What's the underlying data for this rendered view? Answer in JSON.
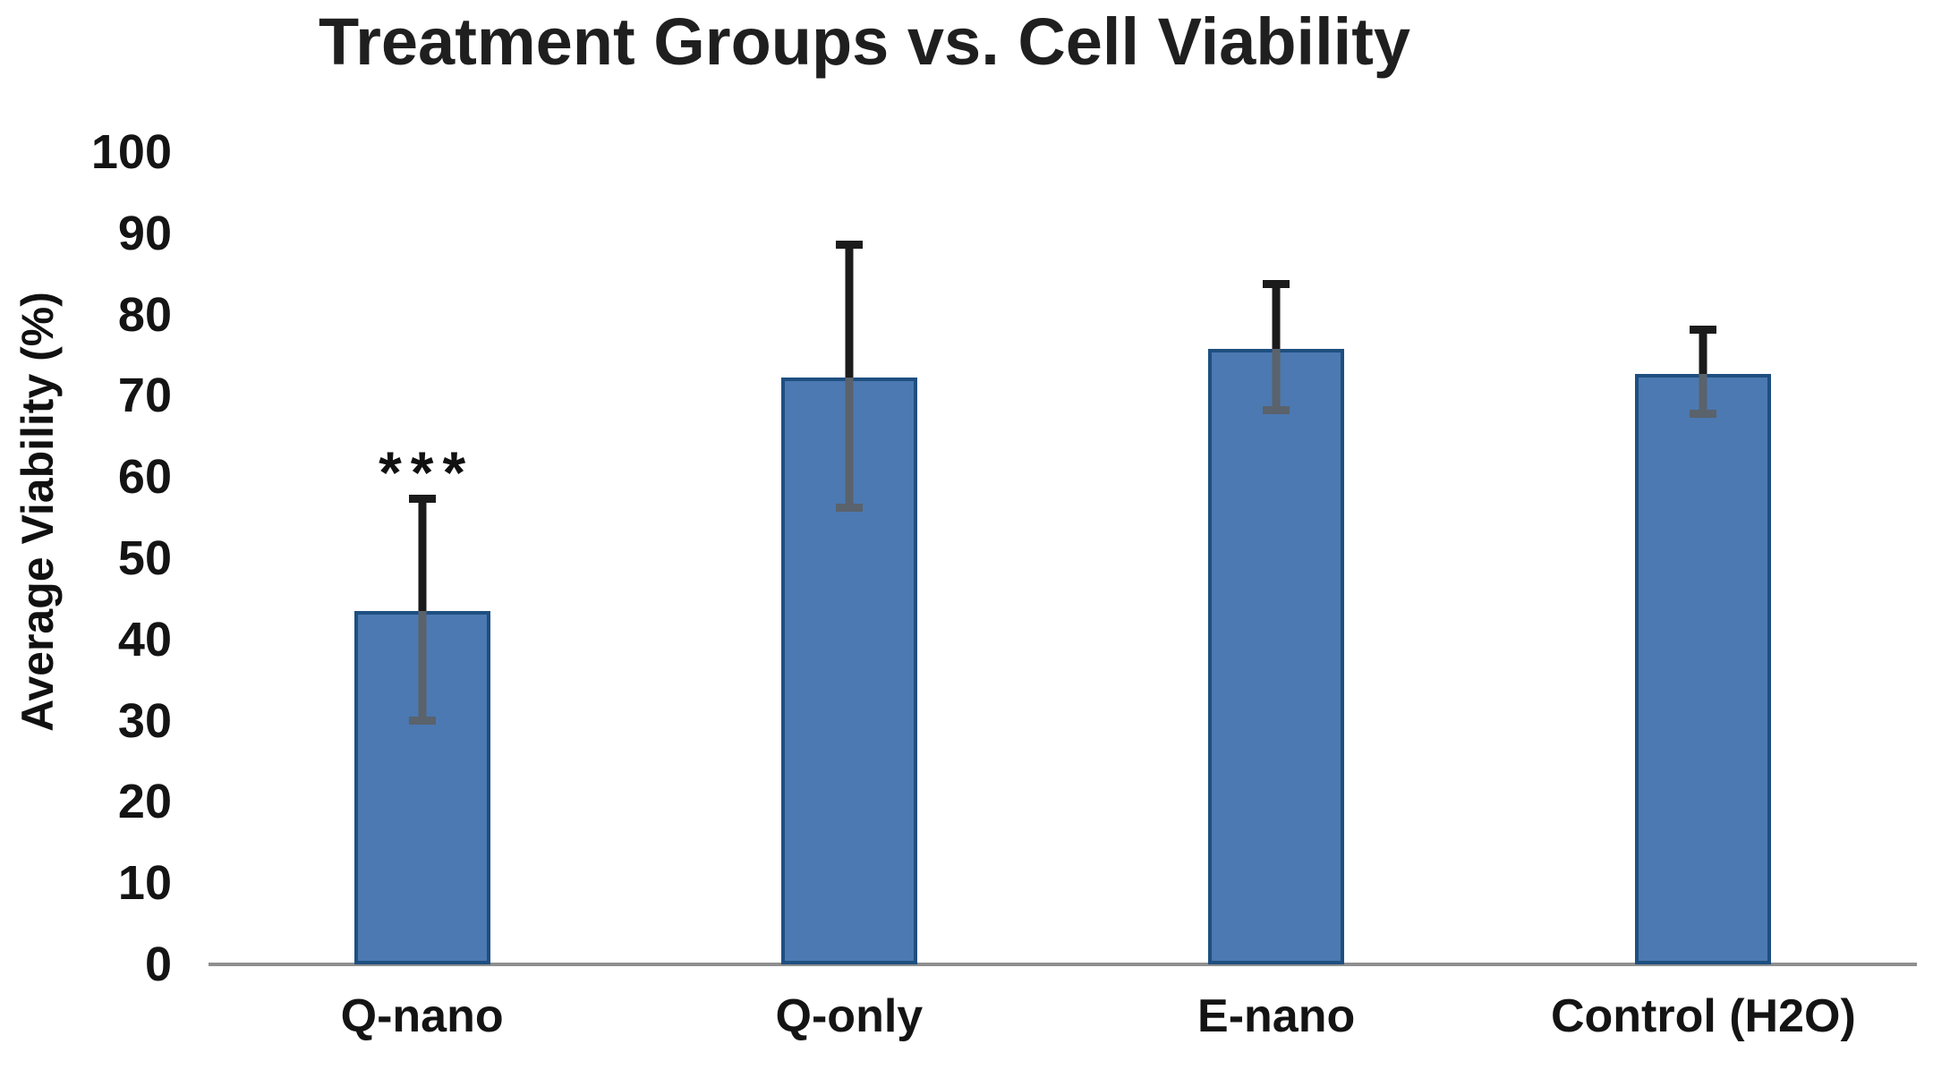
{
  "chart_data": {
    "type": "bar",
    "title": "Treatment Groups vs. Cell Viability",
    "xlabel": "",
    "ylabel": "Average Viability (%)",
    "categories": [
      "Q-nano",
      "Q-only",
      "E-nano",
      "Control (H2O)"
    ],
    "values": [
      43.5,
      72.2,
      75.8,
      72.7
    ],
    "error_upper": [
      57.4,
      88.7,
      83.8,
      78.2
    ],
    "error_lower": [
      30.1,
      56.3,
      68.3,
      67.8
    ],
    "ylim": [
      0,
      100
    ],
    "yticks": [
      0,
      10,
      20,
      30,
      40,
      50,
      60,
      70,
      80,
      90,
      100
    ],
    "grid": false,
    "legend_position": "none",
    "annotations": [
      {
        "category_index": 0,
        "text": "***"
      }
    ],
    "colors": {
      "bar_fill": "#4c79b1",
      "bar_border": "#1e4f80",
      "axis_line": "#8f8f8f",
      "error_bar_above": "#1b1b1b",
      "error_bar_inside": "#5a626c",
      "text": "#141414"
    }
  }
}
